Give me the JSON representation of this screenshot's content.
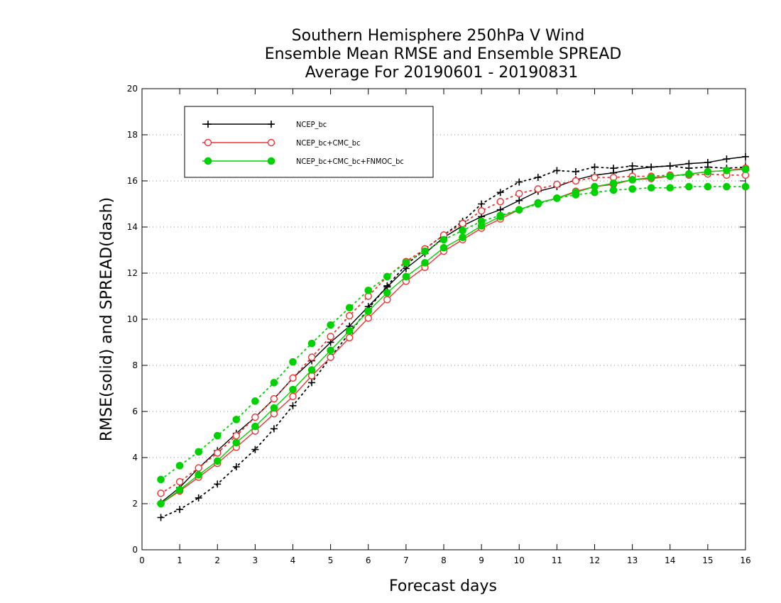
{
  "chart_data": {
    "type": "line",
    "title": [
      "Southern Hemisphere 250hPa V Wind",
      "Ensemble Mean RMSE and Ensemble SPREAD",
      "Average For 20190601 - 20190831"
    ],
    "xlabel": "Forecast days",
    "ylabel": "RMSE(solid) and SPREAD(dash)",
    "xlim": [
      0,
      16
    ],
    "ylim": [
      0,
      20
    ],
    "xticks": [
      "0",
      "1",
      "2",
      "3",
      "4",
      "5",
      "6",
      "7",
      "8",
      "9",
      "10",
      "11",
      "12",
      "13",
      "14",
      "15",
      "16"
    ],
    "yticks": [
      "0",
      "2",
      "4",
      "6",
      "8",
      "10",
      "12",
      "14",
      "16",
      "18",
      "20"
    ],
    "grid": "horizontal dotted",
    "legend_position": "top-left",
    "x": [
      0.5,
      1,
      1.5,
      2,
      2.5,
      3,
      3.5,
      4,
      4.5,
      5,
      5.5,
      6,
      6.5,
      7,
      7.5,
      8,
      8.5,
      9,
      9.5,
      10,
      10.5,
      11,
      11.5,
      12,
      12.5,
      13,
      13.5,
      14,
      14.5,
      15,
      15.5,
      16
    ],
    "series": [
      {
        "name": "NCEP_bc",
        "color": "#000000",
        "marker": "plus",
        "rmse": [
          2.05,
          2.7,
          3.55,
          4.3,
          5.05,
          5.75,
          6.55,
          7.45,
          8.2,
          9.0,
          9.7,
          10.55,
          11.4,
          12.2,
          12.85,
          13.55,
          14.05,
          14.45,
          14.75,
          15.15,
          15.55,
          15.75,
          16.05,
          16.25,
          16.35,
          16.5,
          16.6,
          16.65,
          16.75,
          16.8,
          16.95,
          17.05
        ],
        "spread": [
          1.4,
          1.75,
          2.25,
          2.85,
          3.6,
          4.35,
          5.25,
          6.25,
          7.25,
          8.35,
          9.4,
          10.45,
          11.45,
          12.35,
          13.05,
          13.65,
          14.25,
          15.0,
          15.5,
          15.95,
          16.15,
          16.45,
          16.4,
          16.6,
          16.55,
          16.65,
          16.6,
          16.65,
          16.55,
          16.6,
          16.55,
          16.6
        ]
      },
      {
        "name": "NCEP_bc+CMC_bc",
        "color": "#ee3333",
        "marker": "circle-open",
        "rmse": [
          2.0,
          2.55,
          3.15,
          3.75,
          4.45,
          5.15,
          5.9,
          6.65,
          7.55,
          8.35,
          9.2,
          10.05,
          10.85,
          11.65,
          12.25,
          12.95,
          13.45,
          13.95,
          14.35,
          14.75,
          15.05,
          15.25,
          15.55,
          15.75,
          15.85,
          16.05,
          16.1,
          16.2,
          16.3,
          16.4,
          16.45,
          16.55
        ],
        "spread": [
          2.45,
          2.95,
          3.55,
          4.2,
          4.95,
          5.75,
          6.55,
          7.45,
          8.35,
          9.25,
          10.15,
          11.0,
          11.85,
          12.5,
          13.05,
          13.65,
          14.15,
          14.7,
          15.1,
          15.45,
          15.65,
          15.85,
          16.0,
          16.15,
          16.15,
          16.2,
          16.2,
          16.25,
          16.25,
          16.3,
          16.25,
          16.25
        ]
      },
      {
        "name": "NCEP_bc+CMC_bc+FNMOC_bc",
        "color": "#00d200",
        "marker": "circle-filled",
        "rmse": [
          2.0,
          2.6,
          3.25,
          3.85,
          4.65,
          5.35,
          6.15,
          6.95,
          7.8,
          8.65,
          9.5,
          10.35,
          11.15,
          11.85,
          12.45,
          13.1,
          13.55,
          14.05,
          14.45,
          14.75,
          15.05,
          15.25,
          15.5,
          15.75,
          15.9,
          16.05,
          16.15,
          16.2,
          16.3,
          16.4,
          16.45,
          16.5
        ],
        "spread": [
          3.05,
          3.65,
          4.25,
          4.95,
          5.65,
          6.45,
          7.25,
          8.15,
          8.95,
          9.75,
          10.5,
          11.25,
          11.85,
          12.45,
          12.95,
          13.45,
          13.85,
          14.25,
          14.5,
          14.75,
          15.0,
          15.25,
          15.4,
          15.5,
          15.6,
          15.65,
          15.7,
          15.7,
          15.75,
          15.75,
          15.75,
          15.75
        ]
      }
    ]
  }
}
